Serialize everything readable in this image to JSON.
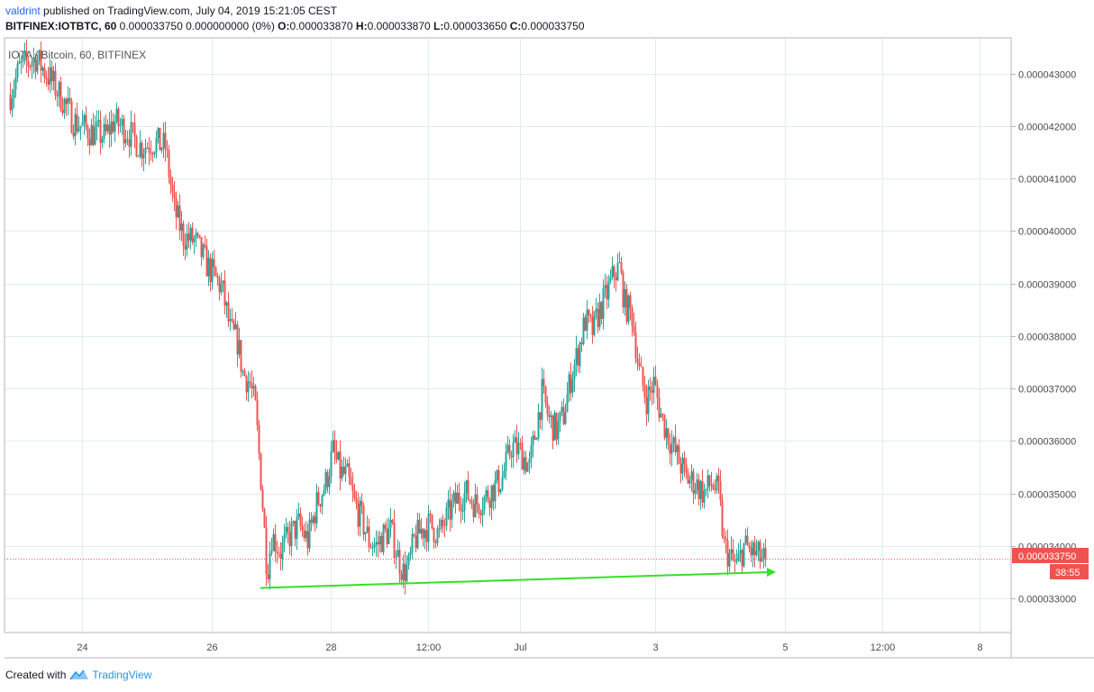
{
  "header": {
    "user": "valdrint",
    "published": " published on TradingView.com, July 04, 2019 15:21:05 CEST",
    "symbol": "BITFINEX:IOTBTC, 60",
    "quote_change": " 0.000033750 0.000000000 (0%) ",
    "o_label": "O:",
    "o_value": "0.000033870",
    "h_label": " H:",
    "h_value": "0.000033870",
    "l_label": " L:",
    "l_value": "0.000033650",
    "c_label": " C:",
    "c_value": "0.000033750"
  },
  "footer": {
    "created_with": "Created with",
    "brand": "TradingView",
    "logo": "tradingview-logo-icon"
  },
  "colors": {
    "up": "#26a69a",
    "down": "#ef5350",
    "grid": "#e0ecf7",
    "trendline": "#35e024",
    "price_line": "#ef5350"
  },
  "chart_data": {
    "type": "candlestick",
    "title": "IOTA / Bitcoin, 60, BITFINEX",
    "x_ticks": [
      "24",
      "26",
      "28",
      "12:00",
      "Jul",
      "3",
      "5",
      "12:00",
      "8"
    ],
    "y_ticks": [
      "0.000043000",
      "0.000042000",
      "0.000041000",
      "0.000040000",
      "0.000039000",
      "0.000038000",
      "0.000037000",
      "0.000036000",
      "0.000035000",
      "0.000034000",
      "0.000033000"
    ],
    "ylim": [
      3.235e-05,
      4.368e-05
    ],
    "last_price": "0.000033750",
    "countdown": "38:55",
    "trendline": {
      "from": [
        "Jun 26 23:00",
        3.32e-05
      ],
      "to": [
        "Jul 4 03:00",
        3.35e-05
      ]
    },
    "anchors": [
      [
        0,
        4.26e-05
      ],
      [
        10,
        4.31e-05
      ],
      [
        28,
        4.33e-05
      ],
      [
        44,
        4.29e-05
      ],
      [
        58,
        4.25e-05
      ],
      [
        70,
        4.21e-05
      ],
      [
        88,
        4.19e-05
      ],
      [
        105,
        4.18e-05
      ],
      [
        115,
        4.21e-05
      ],
      [
        130,
        4.19e-05
      ],
      [
        145,
        4.16e-05
      ],
      [
        160,
        4.17e-05
      ],
      [
        172,
        4.16e-05
      ],
      [
        182,
        4.04e-05
      ],
      [
        192,
        3.99e-05
      ],
      [
        205,
        3.98e-05
      ],
      [
        220,
        3.93e-05
      ],
      [
        235,
        3.89e-05
      ],
      [
        244,
        3.81e-05
      ],
      [
        252,
        3.79e-05
      ],
      [
        258,
        3.73e-05
      ],
      [
        266,
        3.71e-05
      ],
      [
        272,
        3.66e-05
      ],
      [
        278,
        3.53e-05
      ],
      [
        285,
        3.35e-05
      ],
      [
        290,
        3.42e-05
      ],
      [
        300,
        3.39e-05
      ],
      [
        310,
        3.42e-05
      ],
      [
        320,
        3.44e-05
      ],
      [
        330,
        3.41e-05
      ],
      [
        340,
        3.48e-05
      ],
      [
        350,
        3.52e-05
      ],
      [
        358,
        3.58e-05
      ],
      [
        366,
        3.54e-05
      ],
      [
        374,
        3.53e-05
      ],
      [
        382,
        3.48e-05
      ],
      [
        390,
        3.45e-05
      ],
      [
        398,
        3.41e-05
      ],
      [
        406,
        3.4e-05
      ],
      [
        414,
        3.42e-05
      ],
      [
        422,
        3.43e-05
      ],
      [
        430,
        3.38e-05
      ],
      [
        436,
        3.35e-05
      ],
      [
        442,
        3.36e-05
      ],
      [
        448,
        3.41e-05
      ],
      [
        456,
        3.43e-05
      ],
      [
        466,
        3.44e-05
      ],
      [
        476,
        3.42e-05
      ],
      [
        486,
        3.46e-05
      ],
      [
        496,
        3.49e-05
      ],
      [
        506,
        3.5e-05
      ],
      [
        516,
        3.48e-05
      ],
      [
        526,
        3.49e-05
      ],
      [
        536,
        3.51e-05
      ],
      [
        546,
        3.53e-05
      ],
      [
        556,
        3.59e-05
      ],
      [
        566,
        3.58e-05
      ],
      [
        576,
        3.55e-05
      ],
      [
        583,
        3.62e-05
      ],
      [
        590,
        3.69e-05
      ],
      [
        598,
        3.64e-05
      ],
      [
        606,
        3.62e-05
      ],
      [
        614,
        3.65e-05
      ],
      [
        622,
        3.72e-05
      ],
      [
        630,
        3.77e-05
      ],
      [
        638,
        3.83e-05
      ],
      [
        646,
        3.81e-05
      ],
      [
        654,
        3.85e-05
      ],
      [
        662,
        3.88e-05
      ],
      [
        670,
        3.92e-05
      ],
      [
        676,
        3.93e-05
      ],
      [
        682,
        3.86e-05
      ],
      [
        690,
        3.84e-05
      ],
      [
        698,
        3.73e-05
      ],
      [
        706,
        3.68e-05
      ],
      [
        714,
        3.71e-05
      ],
      [
        722,
        3.65e-05
      ],
      [
        730,
        3.61e-05
      ],
      [
        740,
        3.57e-05
      ],
      [
        750,
        3.53e-05
      ],
      [
        760,
        3.52e-05
      ],
      [
        770,
        3.5e-05
      ],
      [
        778,
        3.52e-05
      ],
      [
        786,
        3.5e-05
      ],
      [
        792,
        3.4e-05
      ],
      [
        798,
        3.38e-05
      ],
      [
        806,
        3.36e-05
      ],
      [
        814,
        3.4e-05
      ],
      [
        822,
        3.39e-05
      ],
      [
        830,
        3.38e-05
      ],
      [
        838,
        3.37e-05
      ]
    ]
  }
}
